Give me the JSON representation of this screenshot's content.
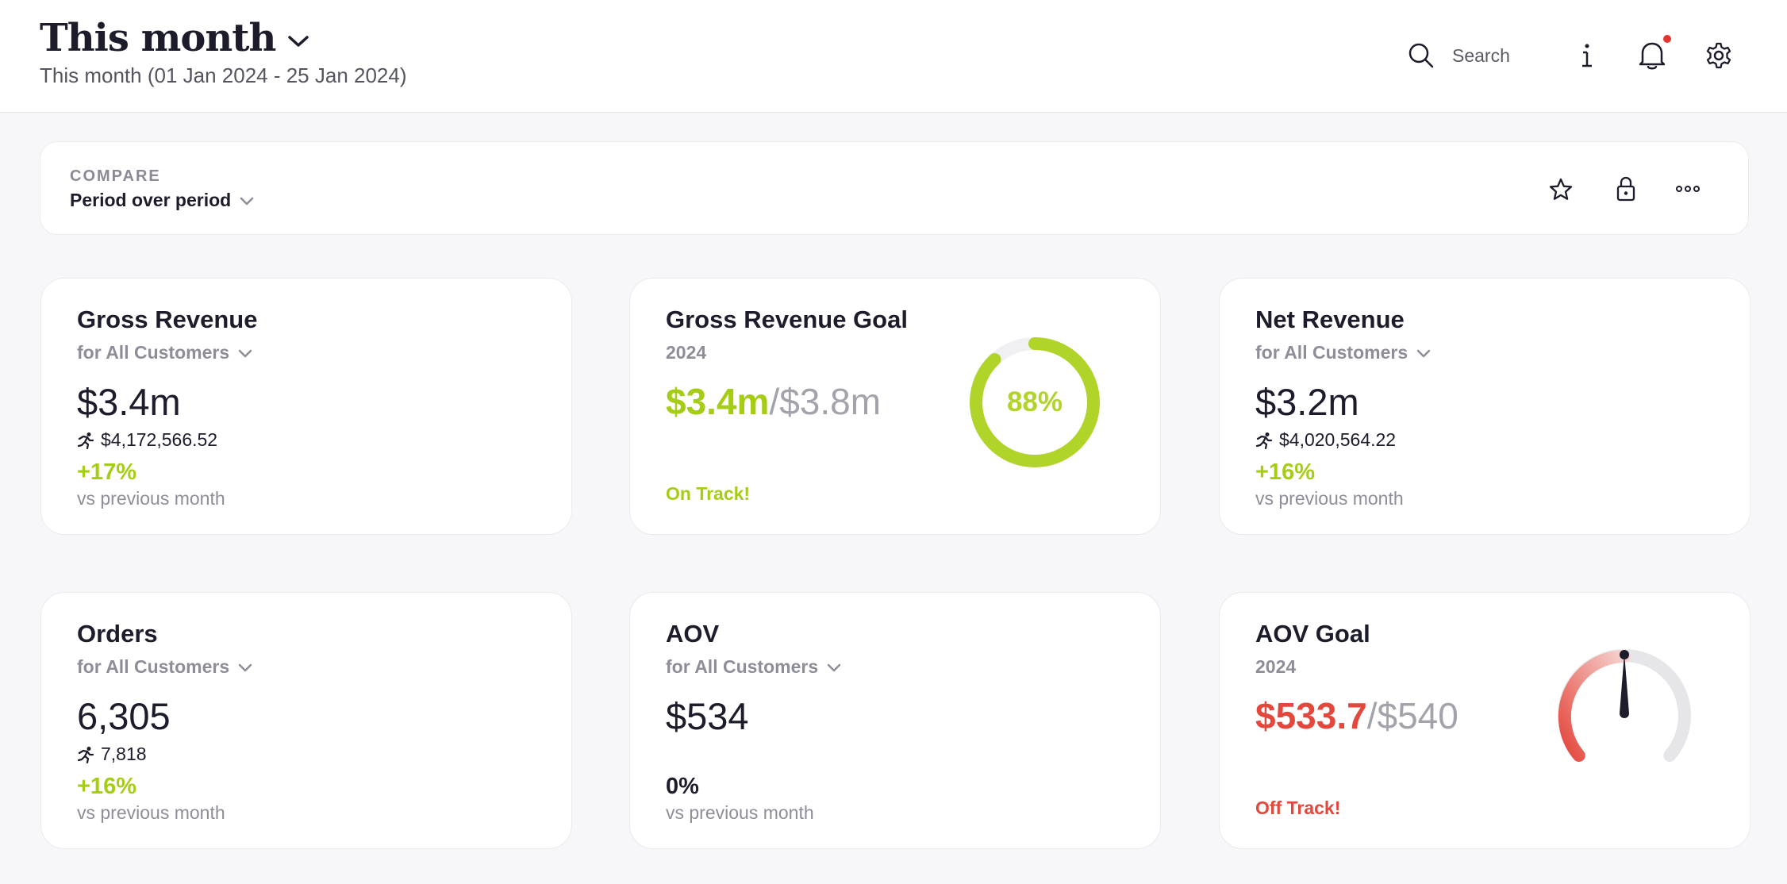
{
  "header": {
    "title": "This month",
    "subtitle": "This month (01 Jan 2024 - 25 Jan 2024)",
    "search_label": "Search"
  },
  "compare": {
    "label": "COMPARE",
    "value": "Period over period"
  },
  "cards": {
    "gross_revenue": {
      "title": "Gross Revenue",
      "subtitle": "for All Customers",
      "value": "$3.4m",
      "run_rate": "$4,172,566.52",
      "change": "+17%",
      "comparison": "vs previous month"
    },
    "gross_revenue_goal": {
      "title": "Gross Revenue Goal",
      "year": "2024",
      "current": "$3.4m",
      "separator": "/",
      "target": "$3.8m",
      "status": "On Track!",
      "percent_label": "88%",
      "progress": 0.88
    },
    "net_revenue": {
      "title": "Net Revenue",
      "subtitle": "for All Customers",
      "value": "$3.2m",
      "run_rate": "$4,020,564.22",
      "change": "+16%",
      "comparison": "vs previous month"
    },
    "orders": {
      "title": "Orders",
      "subtitle": "for All Customers",
      "value": "6,305",
      "run_rate": "7,818",
      "change": "+16%",
      "comparison": "vs previous month"
    },
    "aov": {
      "title": "AOV",
      "subtitle": "for All Customers",
      "value": "$534",
      "change": "0%",
      "comparison": "vs previous month"
    },
    "aov_goal": {
      "title": "AOV Goal",
      "year": "2024",
      "current": "$533.7",
      "separator": "/",
      "target": "$540",
      "status": "Off Track!",
      "progress": 0.5
    }
  },
  "colors": {
    "accent_green": "#a6cd16",
    "alert_red": "#e4473c",
    "notification_dot": "#e5342e"
  },
  "icons": {
    "title_dropdown": "chevron-down-icon",
    "search": "search-icon",
    "info": "info-icon",
    "notifications": "bell-icon",
    "settings": "gear-icon",
    "favorite": "star-icon",
    "lock": "lock-icon",
    "more": "more-icon",
    "run_rate": "running-figure-icon"
  }
}
